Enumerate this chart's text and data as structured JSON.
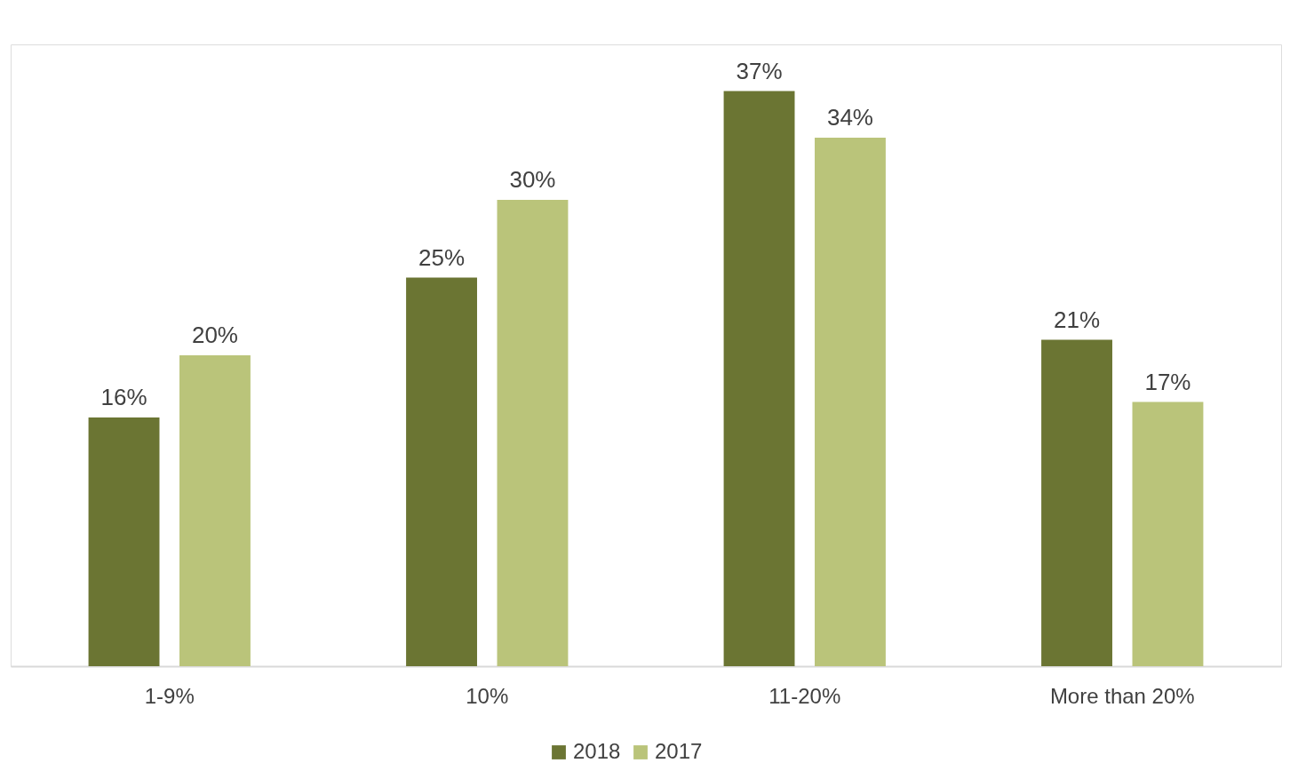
{
  "chart_data": {
    "type": "bar",
    "categories": [
      "1-9%",
      "10%",
      "11-20%",
      "More than 20%"
    ],
    "series": [
      {
        "name": "2018",
        "color": "#6b7533",
        "values": [
          16,
          25,
          37,
          21
        ],
        "value_labels": [
          "16%",
          "25%",
          "37%",
          "21%"
        ]
      },
      {
        "name": "2017",
        "color": "#bac47a",
        "values": [
          20,
          30,
          34,
          17
        ],
        "value_labels": [
          "20%",
          "30%",
          "34%",
          "17%"
        ]
      }
    ],
    "legend": "bottom"
  }
}
